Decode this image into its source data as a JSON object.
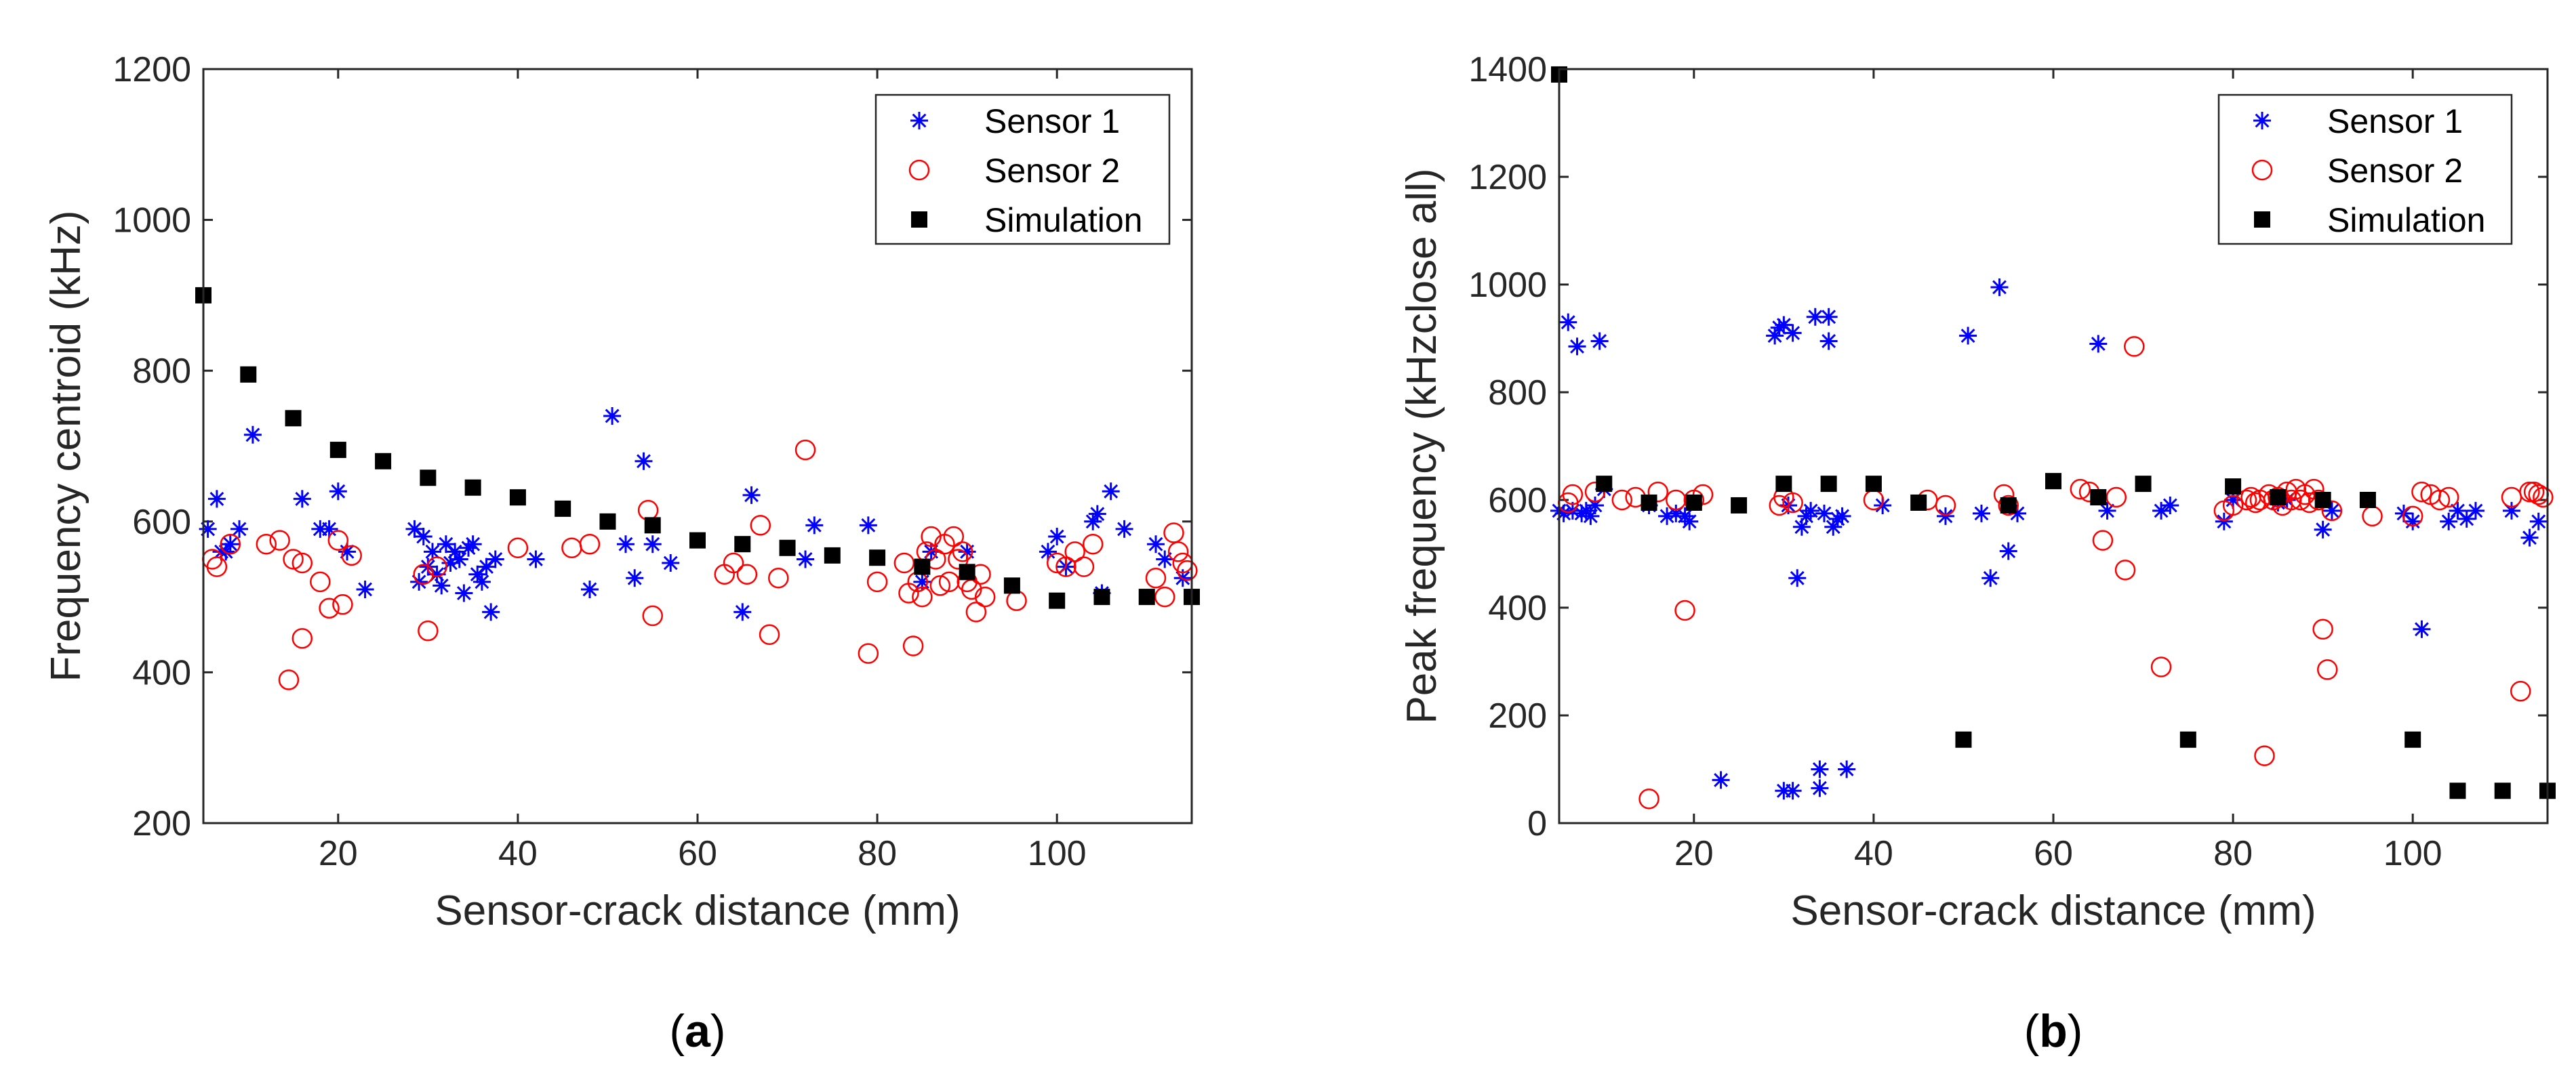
{
  "colors": {
    "sensor1": "#0000ff",
    "sensor2": "#ff0000",
    "simulation": "#000000",
    "axis": "#262626"
  },
  "chart_data": [
    {
      "type": "scatter",
      "panel_label": "a",
      "xlabel": "Sensor-crack distance (mm)",
      "ylabel": "Frequency centroid (kHz)",
      "xlim": [
        5,
        115
      ],
      "ylim": [
        200,
        1200
      ],
      "xticks": [
        20,
        40,
        60,
        80,
        100
      ],
      "yticks": [
        200,
        400,
        600,
        800,
        1000,
        1200
      ],
      "legend_position": "top-right",
      "series": [
        {
          "name": "Sensor 1",
          "marker": "asterisk",
          "color": "#0000ff",
          "x": [
            5.5,
            6.5,
            7,
            7.5,
            8,
            9,
            10.5,
            16,
            18,
            19,
            20,
            21,
            23,
            28.5,
            29,
            29.5,
            30,
            30.5,
            31,
            31.5,
            32,
            32.5,
            33,
            33.5,
            34,
            34.5,
            35,
            35.5,
            36,
            36.5,
            37,
            37.5,
            42,
            48,
            50.5,
            52,
            53,
            54,
            55,
            57,
            65,
            66,
            72,
            73,
            79,
            85,
            86,
            90,
            99,
            100,
            101,
            104,
            104.5,
            105,
            106,
            107.5,
            111,
            112,
            114
          ],
          "y": [
            590,
            630,
            560,
            560,
            570,
            590,
            715,
            630,
            590,
            590,
            640,
            560,
            510,
            590,
            520,
            580,
            540,
            560,
            530,
            515,
            570,
            545,
            560,
            550,
            505,
            565,
            570,
            530,
            520,
            540,
            480,
            550,
            550,
            510,
            740,
            570,
            525,
            680,
            570,
            545,
            480,
            635,
            550,
            595,
            595,
            520,
            560,
            560,
            560,
            580,
            540,
            600,
            610,
            505,
            640,
            590,
            570,
            550,
            525
          ]
        },
        {
          "name": "Sensor 2",
          "marker": "circle",
          "color": "#ff0000",
          "x": [
            6,
            6.5,
            8,
            12,
            13.5,
            14.5,
            15,
            16,
            16,
            18,
            19,
            20,
            20.5,
            21.5,
            29.5,
            30,
            31,
            40,
            46,
            48,
            54.5,
            55,
            63,
            64,
            65.5,
            67,
            68,
            69,
            72,
            79,
            80,
            83,
            83.5,
            84,
            84.5,
            85,
            85.5,
            86,
            86.5,
            87,
            87.5,
            88,
            88.5,
            89,
            89.5,
            90,
            90.5,
            91,
            91.5,
            92,
            95.5,
            100,
            101,
            102,
            103,
            104,
            111,
            112,
            113,
            113.5,
            114,
            114.5
          ],
          "y": [
            550,
            540,
            570,
            570,
            575,
            390,
            550,
            445,
            545,
            520,
            485,
            575,
            490,
            555,
            530,
            455,
            540,
            565,
            565,
            570,
            615,
            475,
            530,
            545,
            530,
            595,
            450,
            525,
            695,
            425,
            520,
            545,
            505,
            435,
            520,
            500,
            560,
            580,
            550,
            515,
            570,
            520,
            580,
            550,
            560,
            520,
            510,
            480,
            530,
            500,
            495,
            545,
            540,
            560,
            540,
            570,
            525,
            500,
            585,
            560,
            545,
            535
          ]
        },
        {
          "name": "Simulation",
          "marker": "square",
          "color": "#000000",
          "x": [
            5,
            10,
            15,
            20,
            25,
            30,
            35,
            40,
            45,
            50,
            55,
            60,
            65,
            70,
            75,
            80,
            85,
            90,
            95,
            100,
            105,
            110,
            115
          ],
          "y": [
            900,
            795,
            737,
            695,
            680,
            658,
            645,
            632,
            617,
            600,
            595,
            575,
            570,
            565,
            555,
            552,
            540,
            533,
            515,
            495,
            500,
            500,
            500
          ]
        }
      ]
    },
    {
      "type": "scatter",
      "panel_label": "b",
      "xlabel": "Sensor-crack distance (mm)",
      "ylabel": "Peak frequency (kHzclose all)",
      "xlim": [
        5,
        115
      ],
      "ylim": [
        0,
        1400
      ],
      "xticks": [
        20,
        40,
        60,
        80,
        100
      ],
      "yticks": [
        0,
        200,
        400,
        600,
        800,
        1000,
        1200,
        1400
      ],
      "legend_position": "top-right",
      "series": [
        {
          "name": "Sensor 1",
          "marker": "asterisk",
          "color": "#0000ff",
          "x": [
            5,
            5.5,
            6,
            6.5,
            7,
            7.5,
            8,
            8.5,
            9,
            9.5,
            10,
            15,
            17,
            18,
            19,
            19.5,
            23,
            29,
            29.5,
            30,
            30,
            30.5,
            31,
            31,
            31.5,
            32,
            32.5,
            33,
            33.5,
            34,
            34,
            34.5,
            35,
            35,
            35.5,
            36,
            36.5,
            37,
            41,
            48,
            50.5,
            52,
            53,
            54,
            55,
            56,
            65,
            66,
            72,
            73,
            79,
            80,
            85,
            86,
            90,
            91,
            99,
            100,
            101,
            104,
            105,
            106,
            107,
            111,
            113,
            114
          ],
          "y": [
            580,
            575,
            930,
            580,
            885,
            575,
            580,
            570,
            590,
            895,
            620,
            590,
            570,
            575,
            570,
            560,
            80,
            905,
            920,
            925,
            60,
            590,
            910,
            60,
            455,
            550,
            570,
            580,
            940,
            100,
            65,
            575,
            940,
            895,
            550,
            565,
            570,
            100,
            590,
            570,
            905,
            575,
            455,
            995,
            505,
            575,
            890,
            580,
            580,
            590,
            560,
            600,
            595,
            600,
            545,
            580,
            575,
            560,
            360,
            560,
            580,
            565,
            580,
            580,
            530,
            560
          ]
        },
        {
          "name": "Sensor 2",
          "marker": "circle",
          "color": "#ff0000",
          "x": [
            6,
            6.5,
            9,
            12,
            13.5,
            15,
            16,
            18,
            19,
            20,
            21,
            29.5,
            30,
            31,
            40,
            46,
            48,
            54.5,
            55,
            63,
            64,
            65.5,
            67,
            68,
            69,
            72,
            79,
            80,
            81.5,
            82,
            82.5,
            83,
            83.5,
            84,
            84.5,
            85,
            85.5,
            86,
            86.5,
            87,
            87.5,
            88,
            88.5,
            89,
            89.5,
            90,
            90.5,
            91,
            95.5,
            100,
            101,
            102,
            103,
            104,
            111,
            112,
            113,
            113.5,
            114,
            114.5
          ],
          "y": [
            595,
            610,
            615,
            600,
            605,
            45,
            615,
            600,
            395,
            600,
            610,
            590,
            605,
            595,
            600,
            600,
            590,
            610,
            590,
            620,
            615,
            525,
            605,
            470,
            885,
            290,
            580,
            590,
            600,
            605,
            595,
            600,
            125,
            610,
            600,
            605,
            590,
            615,
            600,
            620,
            600,
            610,
            595,
            620,
            600,
            360,
            285,
            580,
            570,
            570,
            615,
            610,
            600,
            605,
            605,
            245,
            615,
            615,
            610,
            605
          ]
        },
        {
          "name": "Simulation",
          "marker": "square",
          "color": "#000000",
          "x": [
            5,
            10,
            15,
            20,
            25,
            30,
            35,
            40,
            45,
            50,
            55,
            60,
            65,
            70,
            75,
            80,
            85,
            90,
            95,
            100,
            105,
            110,
            115
          ],
          "y": [
            1390,
            630,
            595,
            595,
            590,
            630,
            630,
            630,
            595,
            155,
            590,
            635,
            605,
            630,
            155,
            625,
            605,
            600,
            600,
            155,
            60,
            60,
            60
          ]
        }
      ]
    }
  ]
}
